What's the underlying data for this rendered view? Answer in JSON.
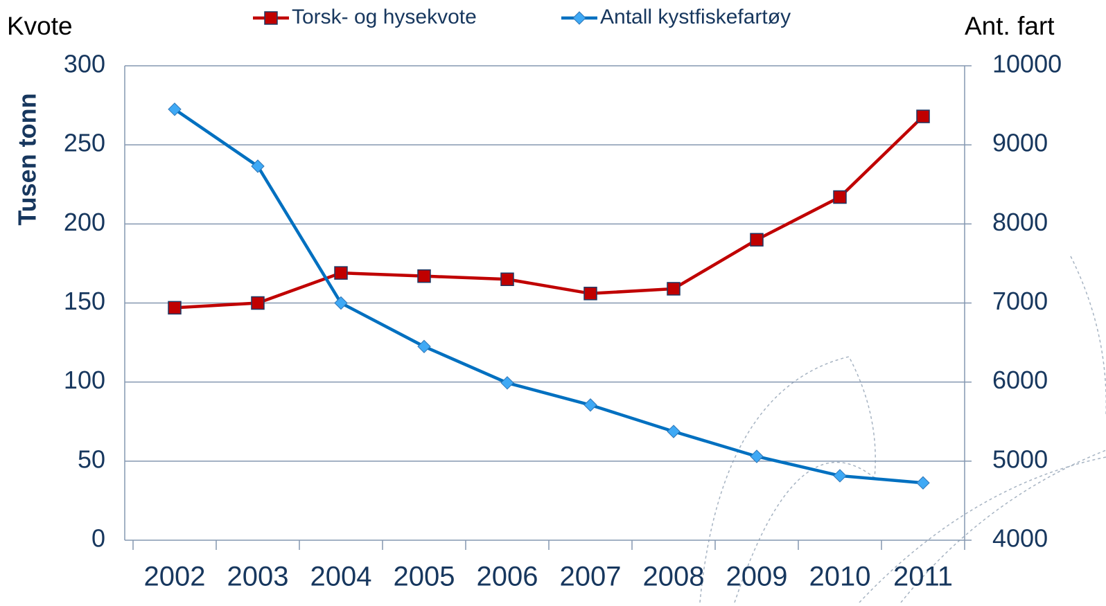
{
  "chart_data": {
    "type": "line",
    "y_label_left_top": "Kvote",
    "y_label_right_top": "Ant. fart",
    "ylabel": "Tusen tonn",
    "categories": [
      "2002",
      "2003",
      "2004",
      "2005",
      "2006",
      "2007",
      "2008",
      "2009",
      "2010",
      "2011"
    ],
    "series": [
      {
        "name": "Torsk- og hysekvote",
        "color": "#c00000",
        "marker": "square",
        "values": [
          147,
          150,
          169,
          167,
          165,
          156,
          159,
          190,
          217,
          268
        ]
      },
      {
        "name": "Antall kystfiskefartøy",
        "color": "#0070c0",
        "marker": "diamond",
        "axis": "y2",
        "values": [
          9450,
          8730,
          7000,
          6450,
          5990,
          5710,
          5375,
          5060,
          4815,
          4725
        ]
      }
    ],
    "ylim": [
      0,
      300
    ],
    "yticks": [
      0,
      50,
      100,
      150,
      200,
      250,
      300
    ],
    "y2lim": [
      4000,
      10000
    ],
    "y2ticks": [
      4000,
      5000,
      6000,
      7000,
      8000,
      9000,
      10000
    ],
    "grid": true
  }
}
